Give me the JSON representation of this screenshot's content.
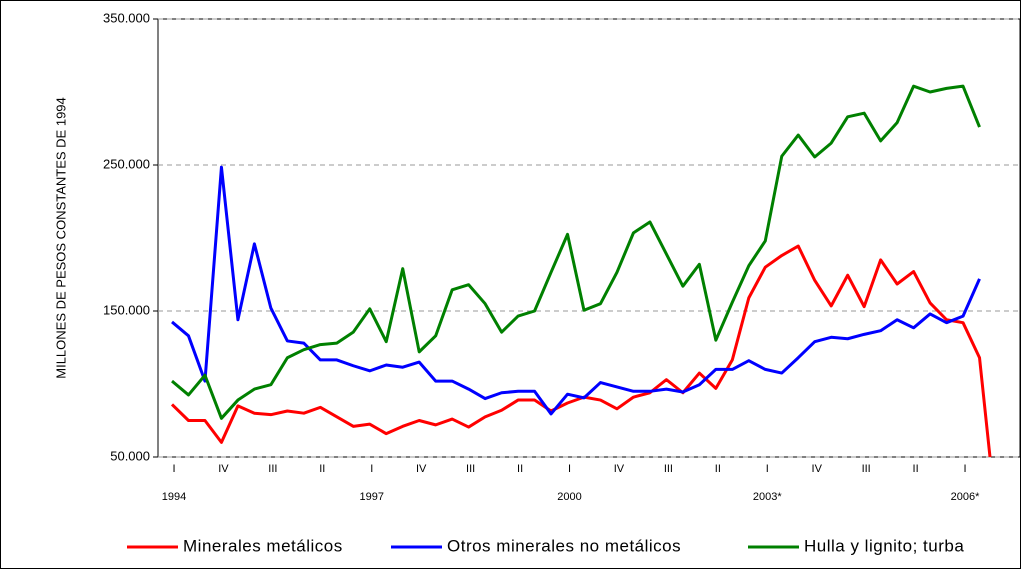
{
  "chart_data": {
    "type": "line",
    "y_label": "MILLONES DE PESOS CONSTANTES DE 1994",
    "categories": [
      "I",
      null,
      null,
      "IV",
      null,
      null,
      "III",
      null,
      null,
      "II",
      null,
      null,
      "I",
      null,
      null,
      "IV",
      null,
      null,
      "III",
      null,
      null,
      "II",
      null,
      null,
      "I",
      null,
      null,
      "IV",
      null,
      null,
      "III",
      null,
      null,
      "II",
      null,
      null,
      "I",
      null,
      null,
      "IV",
      null,
      null,
      "III",
      null,
      null,
      "II",
      null,
      null,
      "I",
      null,
      null
    ],
    "years": [
      "1994",
      null,
      null,
      null,
      null,
      null,
      null,
      null,
      null,
      null,
      null,
      null,
      "1997",
      null,
      null,
      null,
      null,
      null,
      null,
      null,
      null,
      null,
      null,
      null,
      "2000",
      null,
      null,
      null,
      null,
      null,
      null,
      null,
      null,
      null,
      null,
      null,
      "2003*",
      null,
      null,
      null,
      null,
      null,
      null,
      null,
      null,
      null,
      null,
      null,
      "2006*",
      null,
      null
    ],
    "series": [
      {
        "name": "Minerales metálicos",
        "color": "#ff0000",
        "values": [
          86000,
          75000,
          75000,
          60000,
          85000,
          80000,
          79000,
          81500,
          80000,
          84000,
          77500,
          71000,
          72500,
          66000,
          71000,
          75000,
          72000,
          76000,
          70500,
          77500,
          82000,
          89000,
          89000,
          81500,
          87000,
          91000,
          89000,
          83000,
          91000,
          94000,
          103000,
          94000,
          107500,
          97000,
          116500,
          159000,
          180000,
          188000,
          194500,
          171000,
          153500,
          174500,
          153000,
          185000,
          168500,
          177000,
          155500,
          144000,
          142000,
          118000,
          11000
        ]
      },
      {
        "name": "Otros minerales no metálicos",
        "color": "#0000ff",
        "values": [
          142500,
          133000,
          102000,
          248500,
          144000,
          196000,
          152000,
          129500,
          128000,
          116500,
          116500,
          112500,
          109000,
          113000,
          111500,
          115000,
          102000,
          102000,
          96500,
          90000,
          94000,
          95000,
          95000,
          79500,
          93000,
          90500,
          101000,
          98000,
          95000,
          95000,
          96500,
          94500,
          99500,
          110000,
          110000,
          116000,
          110000,
          107500,
          118000,
          129000,
          132000,
          131000,
          134000,
          136500,
          144000,
          138500,
          148000,
          142000,
          146500,
          172000,
          null
        ]
      },
      {
        "name": "Hulla y lignito; turba",
        "color": "#008000",
        "values": [
          102000,
          92500,
          106000,
          76500,
          89000,
          96500,
          99500,
          118000,
          123500,
          127000,
          128000,
          135500,
          151500,
          129000,
          179000,
          122000,
          133000,
          164500,
          168000,
          155000,
          135500,
          146500,
          150000,
          176500,
          202500,
          150500,
          155000,
          176500,
          203500,
          211000,
          189000,
          167000,
          182000,
          130000,
          156000,
          181000,
          198000,
          256000,
          270500,
          255500,
          265000,
          283000,
          285500,
          266500,
          279000,
          304000,
          300000,
          302500,
          304000,
          276000,
          null
        ]
      }
    ],
    "ylim": [
      50000,
      350000
    ],
    "yticks": [
      {
        "value": 50000,
        "label": "50.000"
      },
      {
        "value": 150000,
        "label": "150.000"
      },
      {
        "value": 250000,
        "label": "250.000"
      },
      {
        "value": 350000,
        "label": "350.000"
      }
    ],
    "grid": true,
    "legend": "bottom"
  }
}
